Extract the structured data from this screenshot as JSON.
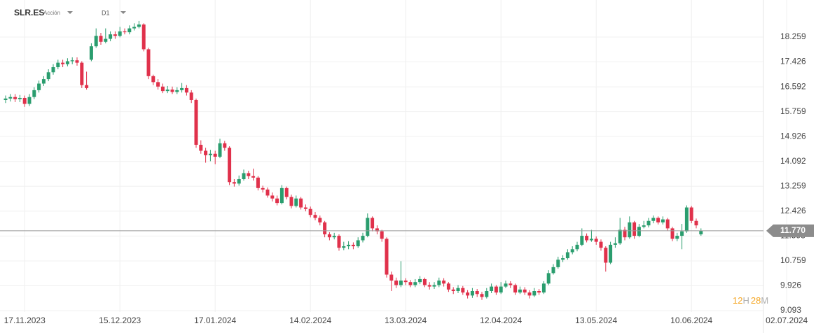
{
  "header": {
    "symbol": "SLR.ES",
    "kind": "Acción",
    "timeframe": "D1"
  },
  "countdown": {
    "hours": "12",
    "h": "H",
    "minutes": "28",
    "m": "M"
  },
  "chart_data": {
    "type": "candlestick",
    "last_price": {
      "value": 11.77,
      "label": "11.770"
    },
    "ylim": [
      8.578,
      19.501
    ],
    "yticks": [
      18.259,
      17.426,
      16.592,
      15.759,
      14.926,
      14.092,
      13.259,
      12.426,
      11.593,
      10.759,
      9.926,
      9.093
    ],
    "grid": true,
    "up_color": "#2a9d6e",
    "down_color": "#e0314b",
    "categories": [
      null,
      null,
      null,
      null,
      "17.11.2023",
      null,
      null,
      null,
      null,
      null,
      null,
      null,
      null,
      null,
      null,
      null,
      null,
      null,
      null,
      null,
      null,
      null,
      null,
      null,
      "15.12.2023",
      null,
      null,
      null,
      null,
      null,
      null,
      null,
      null,
      null,
      null,
      null,
      null,
      null,
      null,
      null,
      null,
      null,
      null,
      null,
      "17.01.2024",
      null,
      null,
      null,
      null,
      null,
      null,
      null,
      null,
      null,
      null,
      null,
      null,
      null,
      null,
      null,
      null,
      null,
      null,
      null,
      "14.02.2024",
      null,
      null,
      null,
      null,
      null,
      null,
      null,
      null,
      null,
      null,
      null,
      null,
      null,
      null,
      null,
      null,
      null,
      null,
      null,
      "13.03.2024",
      null,
      null,
      null,
      null,
      null,
      null,
      null,
      null,
      null,
      null,
      null,
      null,
      null,
      null,
      null,
      null,
      null,
      null,
      null,
      "12.04.2024",
      null,
      null,
      null,
      null,
      null,
      null,
      null,
      null,
      null,
      null,
      null,
      null,
      null,
      null,
      null,
      null,
      null,
      null,
      null,
      "13.05.2024",
      null,
      null,
      null,
      null,
      null,
      null,
      null,
      null,
      null,
      null,
      null,
      null,
      null,
      null,
      null,
      null,
      null,
      null,
      null,
      "10.06.2024",
      null,
      null,
      null,
      null,
      null,
      null,
      null,
      null,
      null,
      null,
      null,
      null,
      null,
      null,
      null,
      null,
      null,
      null,
      null,
      "02.07.2024"
    ],
    "open": [
      16.15,
      16.2,
      16.25,
      16.18,
      16.22,
      16.02,
      16.25,
      16.48,
      16.7,
      16.85,
      17.08,
      17.25,
      17.4,
      17.35,
      17.45,
      17.48,
      17.4,
      16.65,
      17.5,
      17.95,
      18.3,
      18.1,
      18.2,
      18.35,
      18.3,
      18.45,
      18.42,
      18.55,
      18.6,
      18.68,
      17.85,
      16.95,
      16.75,
      16.6,
      16.45,
      16.5,
      16.42,
      16.48,
      16.55,
      16.4,
      16.15,
      14.65,
      14.45,
      14.3,
      14.35,
      14.25,
      14.7,
      14.55,
      13.4,
      13.35,
      13.5,
      13.7,
      13.6,
      13.55,
      13.2,
      13.15,
      12.95,
      12.85,
      12.7,
      13.2,
      12.9,
      12.6,
      12.85,
      12.55,
      12.5,
      12.3,
      12.2,
      12.05,
      11.65,
      11.55,
      11.6,
      11.2,
      11.25,
      11.3,
      11.25,
      11.45,
      11.6,
      12.2,
      11.85,
      11.75,
      11.5,
      10.3,
      10.1,
      9.95,
      10.1,
      10.05,
      9.95,
      10.05,
      10.15,
      9.95,
      9.9,
      9.95,
      10.1,
      10.0,
      9.8,
      9.75,
      9.85,
      9.7,
      9.6,
      9.75,
      9.65,
      9.55,
      9.75,
      9.9,
      9.7,
      9.9,
      10.0,
      9.95,
      9.7,
      9.8,
      9.7,
      9.6,
      9.75,
      9.7,
      10.0,
      10.35,
      10.55,
      10.8,
      10.85,
      11.05,
      11.15,
      11.3,
      11.6,
      11.45,
      11.5,
      11.4,
      11.2,
      10.7,
      11.3,
      11.35,
      11.8,
      11.55,
      12.05,
      11.6,
      11.9,
      11.95,
      12.1,
      12.2,
      12.05,
      12.15,
      11.85,
      11.5,
      11.6,
      11.75,
      12.55,
      12.1,
      11.65,
      null,
      null,
      null,
      null,
      null,
      null,
      null,
      null,
      null,
      null,
      null,
      null,
      null,
      null,
      null,
      null,
      null,
      null
    ],
    "high": [
      16.3,
      16.35,
      16.35,
      16.32,
      16.3,
      16.35,
      16.58,
      16.8,
      16.95,
      17.18,
      17.35,
      17.5,
      17.5,
      17.55,
      17.58,
      17.58,
      17.45,
      17.1,
      18.05,
      18.55,
      18.4,
      18.55,
      18.45,
      18.45,
      18.6,
      18.55,
      18.65,
      18.72,
      18.8,
      18.72,
      17.9,
      17.0,
      16.85,
      16.7,
      16.62,
      16.6,
      16.58,
      16.72,
      16.65,
      16.48,
      16.2,
      14.8,
      14.55,
      14.48,
      14.45,
      14.85,
      14.78,
      14.6,
      13.5,
      13.62,
      13.82,
      13.78,
      13.85,
      13.6,
      13.28,
      13.22,
      13.05,
      12.95,
      13.3,
      13.25,
      12.98,
      12.95,
      12.9,
      12.65,
      12.58,
      12.4,
      12.28,
      12.1,
      11.72,
      11.7,
      11.65,
      11.4,
      11.42,
      11.38,
      11.55,
      11.7,
      12.35,
      12.25,
      11.95,
      11.8,
      11.55,
      10.4,
      10.2,
      10.75,
      10.18,
      10.12,
      10.15,
      10.25,
      10.2,
      10.05,
      10.05,
      10.2,
      10.18,
      10.05,
      9.88,
      9.95,
      9.92,
      9.78,
      9.85,
      9.82,
      9.72,
      9.85,
      10.0,
      9.95,
      10.05,
      10.1,
      10.08,
      10.0,
      9.9,
      9.88,
      9.78,
      9.85,
      9.82,
      10.08,
      10.45,
      10.65,
      10.9,
      10.95,
      11.15,
      11.25,
      11.4,
      11.85,
      11.68,
      11.8,
      11.58,
      11.48,
      11.25,
      11.4,
      11.55,
      12.2,
      11.9,
      12.25,
      12.1,
      12.0,
      12.1,
      12.2,
      12.28,
      12.25,
      12.25,
      12.2,
      11.9,
      11.7,
      12.0,
      12.62,
      12.6,
      12.18,
      11.85,
      null,
      null,
      null,
      null,
      null,
      null,
      null,
      null,
      null,
      null,
      null,
      null,
      null,
      null,
      null,
      null,
      null,
      null
    ],
    "low": [
      16.05,
      16.1,
      16.08,
      16.08,
      15.92,
      15.95,
      16.18,
      16.4,
      16.62,
      16.78,
      17.0,
      17.18,
      17.25,
      17.28,
      17.35,
      17.3,
      16.55,
      16.5,
      17.45,
      17.9,
      18.0,
      18.05,
      18.12,
      18.2,
      18.25,
      18.35,
      18.35,
      18.48,
      18.55,
      17.78,
      16.85,
      16.65,
      16.5,
      16.38,
      16.38,
      16.35,
      16.35,
      16.4,
      16.3,
      16.05,
      14.55,
      14.35,
      14.05,
      14.1,
      14.0,
      14.2,
      14.45,
      13.3,
      13.25,
      13.28,
      13.45,
      13.5,
      13.45,
      13.12,
      13.05,
      12.88,
      12.75,
      12.62,
      12.65,
      12.82,
      12.52,
      12.55,
      12.48,
      12.42,
      12.22,
      12.12,
      11.95,
      11.55,
      11.45,
      11.48,
      11.1,
      11.12,
      11.15,
      11.15,
      11.2,
      11.38,
      11.55,
      11.75,
      11.65,
      11.4,
      10.2,
      9.75,
      9.85,
      9.88,
      9.95,
      9.88,
      9.88,
      9.98,
      9.88,
      9.8,
      9.82,
      9.88,
      9.9,
      9.72,
      9.65,
      9.68,
      9.62,
      9.5,
      9.52,
      9.55,
      9.45,
      9.5,
      9.68,
      9.62,
      9.65,
      9.85,
      9.85,
      9.62,
      9.65,
      9.62,
      9.5,
      9.55,
      9.62,
      9.65,
      9.95,
      10.3,
      10.5,
      10.72,
      10.8,
      10.98,
      11.08,
      11.25,
      11.38,
      11.4,
      11.3,
      11.1,
      10.4,
      10.65,
      11.2,
      11.3,
      11.45,
      11.5,
      11.5,
      11.55,
      11.85,
      11.88,
      12.02,
      11.98,
      11.98,
      11.78,
      11.42,
      11.42,
      11.15,
      11.7,
      12.02,
      11.85,
      11.6,
      null,
      null,
      null,
      null,
      null,
      null,
      null,
      null,
      null,
      null,
      null,
      null,
      null,
      null,
      null,
      null,
      null,
      null
    ],
    "close": [
      16.2,
      16.25,
      16.18,
      16.22,
      16.02,
      16.25,
      16.48,
      16.7,
      16.85,
      17.08,
      17.25,
      17.4,
      17.35,
      17.45,
      17.48,
      17.4,
      16.65,
      16.55,
      17.95,
      18.3,
      18.1,
      18.2,
      18.35,
      18.3,
      18.45,
      18.42,
      18.55,
      18.6,
      18.68,
      17.85,
      16.95,
      16.75,
      16.6,
      16.45,
      16.5,
      16.42,
      16.48,
      16.55,
      16.4,
      16.15,
      14.65,
      14.45,
      14.3,
      14.35,
      14.25,
      14.7,
      14.55,
      13.4,
      13.35,
      13.5,
      13.7,
      13.6,
      13.55,
      13.2,
      13.15,
      12.95,
      12.85,
      12.7,
      13.2,
      12.9,
      12.6,
      12.85,
      12.55,
      12.5,
      12.3,
      12.2,
      12.05,
      11.65,
      11.55,
      11.6,
      11.2,
      11.25,
      11.3,
      11.25,
      11.45,
      11.6,
      12.2,
      11.85,
      11.75,
      11.5,
      10.3,
      10.1,
      9.95,
      10.1,
      10.05,
      9.95,
      10.05,
      10.15,
      9.95,
      9.9,
      9.95,
      10.1,
      10.0,
      9.8,
      9.75,
      9.85,
      9.7,
      9.6,
      9.75,
      9.65,
      9.55,
      9.75,
      9.9,
      9.7,
      9.9,
      10.0,
      9.95,
      9.7,
      9.8,
      9.7,
      9.6,
      9.75,
      9.7,
      10.0,
      10.35,
      10.55,
      10.8,
      10.85,
      11.05,
      11.15,
      11.3,
      11.6,
      11.45,
      11.5,
      11.4,
      11.2,
      10.7,
      11.3,
      11.35,
      11.8,
      11.55,
      12.05,
      11.6,
      11.9,
      11.95,
      12.1,
      12.2,
      12.05,
      12.15,
      11.85,
      11.5,
      11.6,
      11.75,
      12.55,
      12.1,
      11.95,
      11.77,
      null,
      null,
      null,
      null,
      null,
      null,
      null,
      null,
      null,
      null,
      null,
      null,
      null,
      null,
      null,
      null,
      null,
      null
    ]
  }
}
